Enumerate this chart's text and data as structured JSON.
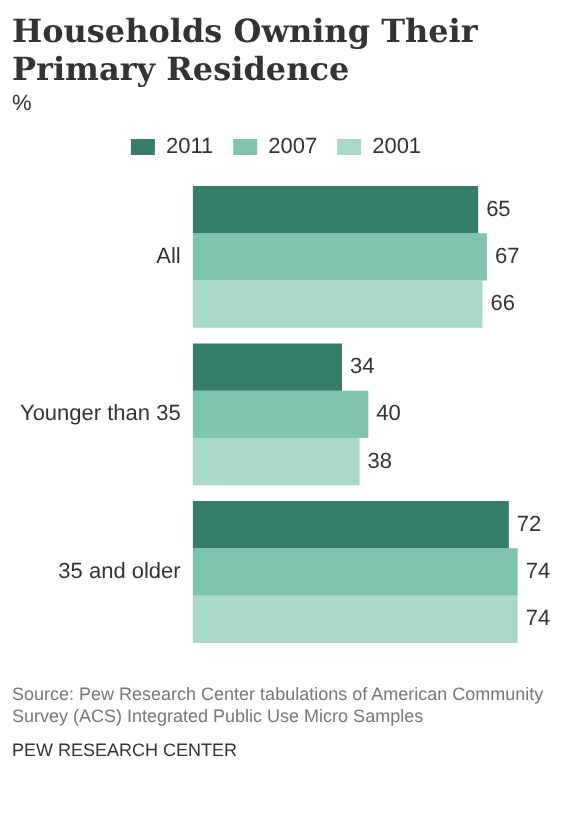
{
  "chart_data": {
    "type": "bar",
    "orientation": "horizontal",
    "title": "Households Owning Their Primary Residence",
    "subtitle": "%",
    "categories": [
      "All",
      "Younger than 35",
      "35 and older"
    ],
    "series": [
      {
        "name": "2011",
        "color": "#367d6b",
        "values": [
          65,
          34,
          72
        ]
      },
      {
        "name": "2007",
        "color": "#7dc3ad",
        "values": [
          67,
          40,
          74
        ]
      },
      {
        "name": "2001",
        "color": "#a9d9c9",
        "values": [
          66,
          38,
          74
        ]
      }
    ],
    "data_labels": true,
    "legend": "top",
    "tick_labels": "y",
    "grid": false,
    "annotations": [
      "Source: Pew Research Center tabulations of American Community Survey (ACS) Integrated Public Use Micro Samples",
      "PEW RESEARCH CENTER"
    ]
  }
}
